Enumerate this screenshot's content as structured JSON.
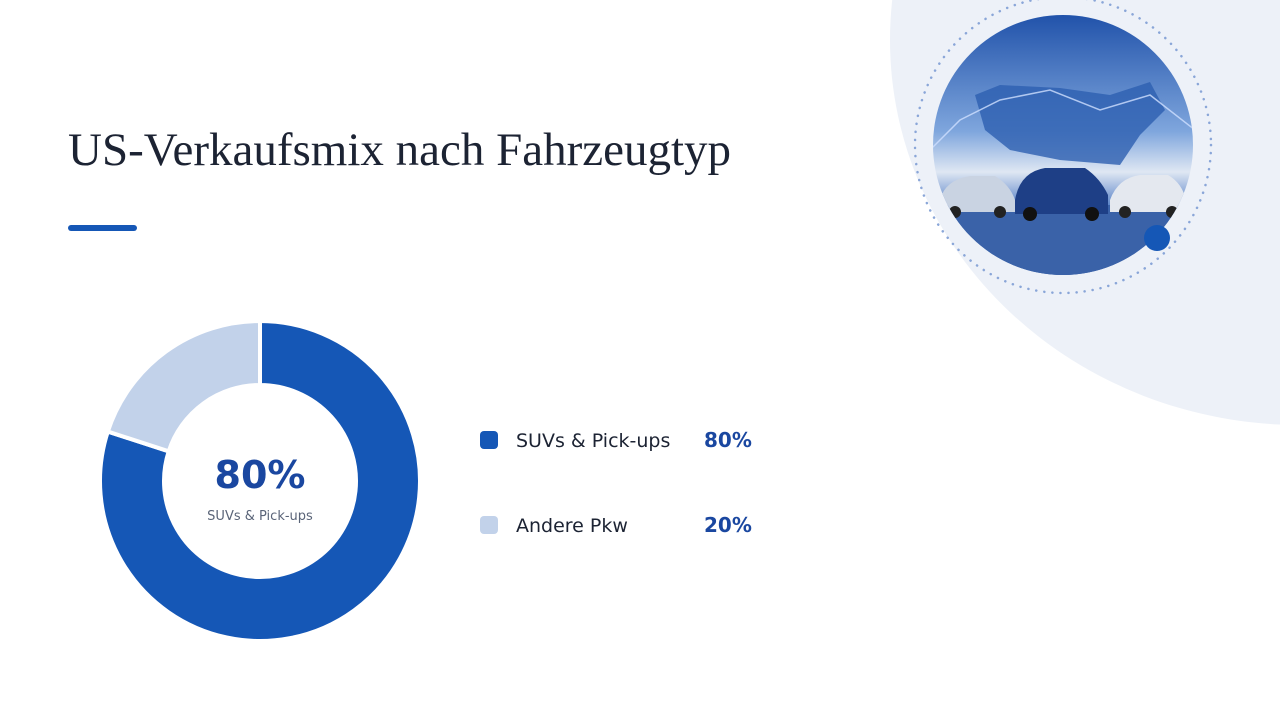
{
  "chart_data": {
    "type": "pie",
    "title": "US-Verkaufsmix nach Fahrzeugtyp",
    "categories": [
      "SUVs & Pick-ups",
      "Andere Pkw"
    ],
    "values": [
      80,
      20
    ],
    "value_labels": [
      "80%",
      "20%"
    ],
    "colors": [
      "#1557b6",
      "#c2d2ea"
    ],
    "donut": true
  }
}
